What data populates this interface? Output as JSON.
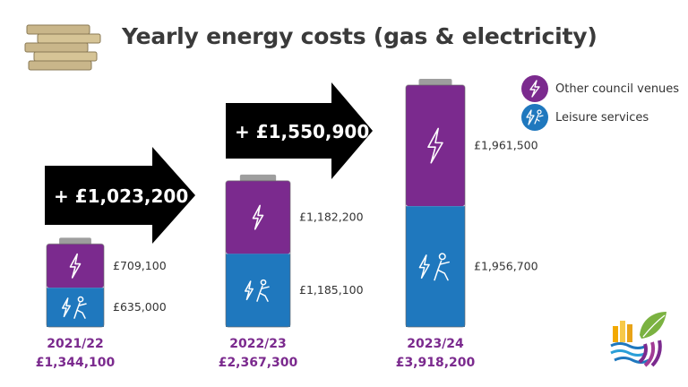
{
  "title": "Yearly energy costs (gas & electricity)",
  "legend": [
    {
      "label": "Other council venues",
      "color": "#7b2a8e",
      "icon": "lightning-icon"
    },
    {
      "label": "Leisure services",
      "color": "#1f78be",
      "icon": "lightning-person-icon"
    }
  ],
  "colors": {
    "other_council_venues": "#7b2a8e",
    "leisure_services": "#1f78be",
    "year_text": "#7b2a8e",
    "arrow": "#000000",
    "battery_cap": "#9e9e9e"
  },
  "chart_data": {
    "type": "bar",
    "stacked": true,
    "title": "Yearly energy costs (gas & electricity)",
    "categories": [
      "2021/22",
      "2022/23",
      "2023/24"
    ],
    "series": [
      {
        "name": "Leisure services",
        "values": [
          635000,
          1185100,
          1956700
        ],
        "labels": [
          "£635,000",
          "£1,185,100",
          "£1,956,700"
        ]
      },
      {
        "name": "Other council venues",
        "values": [
          709100,
          1182200,
          1961500
        ],
        "labels": [
          "£709,100",
          "£1,182,200",
          "£1,961,500"
        ]
      }
    ],
    "totals": [
      1344100,
      2367300,
      3918200
    ],
    "total_labels": [
      "£1,344,100",
      "£2,367,300",
      "£3,918,200"
    ],
    "increases": [
      {
        "label": "+ £1,023,200",
        "from": "2021/22",
        "to": "2022/23"
      },
      {
        "label": "+ £1,550,900",
        "from": "2022/23",
        "to": "2023/24"
      }
    ],
    "legend_position": "top-right",
    "grid": false
  }
}
